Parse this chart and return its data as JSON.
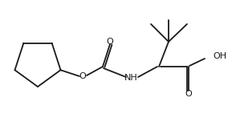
{
  "bg_color": "#ffffff",
  "line_color": "#1a1a1a",
  "line_width": 1.3,
  "figsize": [
    2.94,
    1.52
  ],
  "dpi": 100,
  "xlim": [
    0,
    294
  ],
  "ylim": [
    0,
    152
  ]
}
